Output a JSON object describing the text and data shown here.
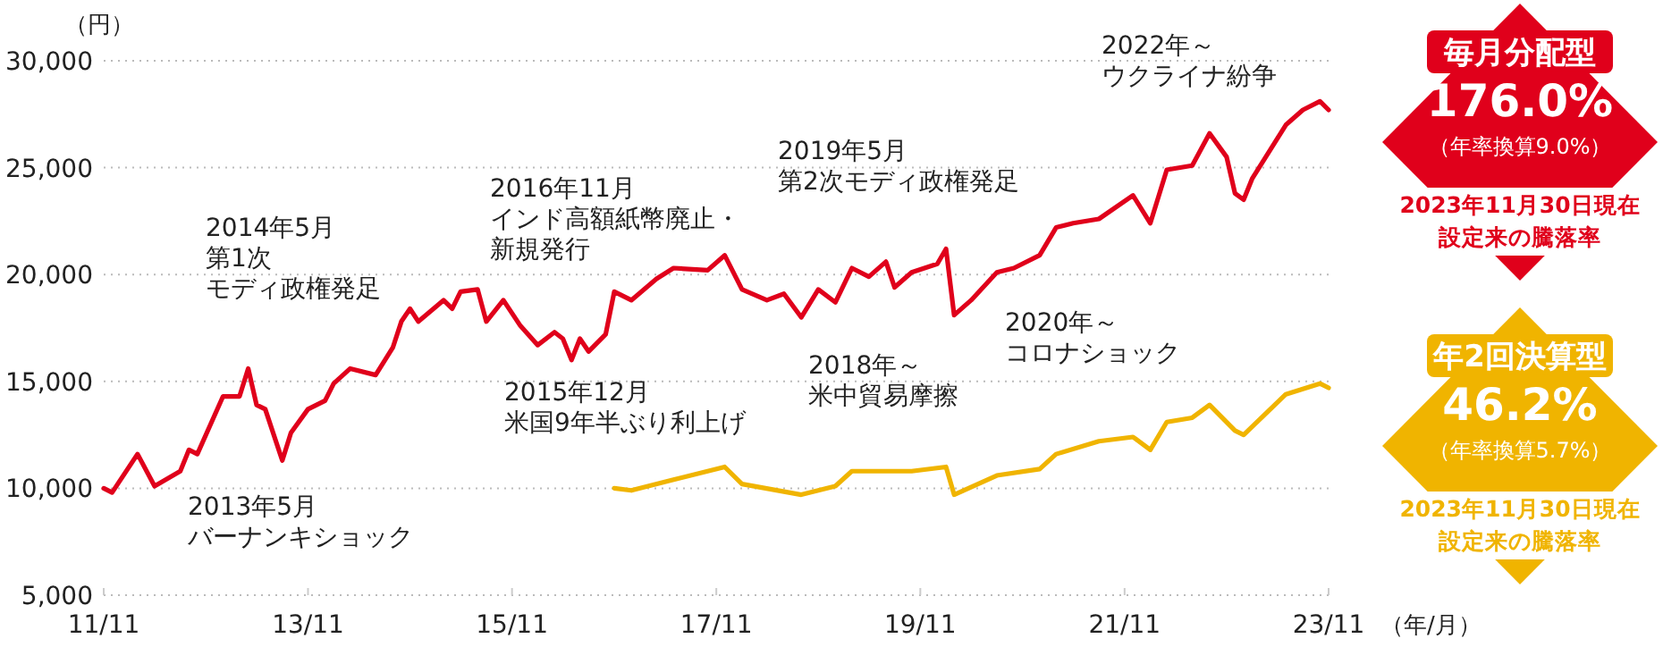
{
  "chart_data": {
    "type": "line",
    "ylabel": "（円）",
    "xlabel": "（年/月）",
    "xlim": [
      "2011-11",
      "2023-11"
    ],
    "xticks": [
      {
        "value": "2011-11",
        "label": "11/11"
      },
      {
        "value": "2013-11",
        "label": "13/11"
      },
      {
        "value": "2015-11",
        "label": "15/11"
      },
      {
        "value": "2017-11",
        "label": "17/11"
      },
      {
        "value": "2019-11",
        "label": "19/11"
      },
      {
        "value": "2021-11",
        "label": "21/11"
      },
      {
        "value": "2023-11",
        "label": "23/11"
      }
    ],
    "ylim": [
      5000,
      30000
    ],
    "yticks": [
      {
        "value": 5000,
        "label": "5,000"
      },
      {
        "value": 10000,
        "label": "10,000"
      },
      {
        "value": 15000,
        "label": "15,000"
      },
      {
        "value": 20000,
        "label": "20,000"
      },
      {
        "value": 25000,
        "label": "25,000"
      },
      {
        "value": 30000,
        "label": "30,000"
      }
    ],
    "grid": "y",
    "legend": "right",
    "marker": "none",
    "line_style": "solid",
    "series": [
      {
        "name": "毎月分配型",
        "color": "#e0001b",
        "x": [
          "2011-11",
          "2011-12",
          "2012-03",
          "2012-05",
          "2012-08",
          "2012-09",
          "2012-10",
          "2013-01",
          "2013-03",
          "2013-04",
          "2013-05",
          "2013-06",
          "2013-08",
          "2013-09",
          "2013-11",
          "2014-01",
          "2014-02",
          "2014-04",
          "2014-07",
          "2014-09",
          "2014-10",
          "2014-11",
          "2014-12",
          "2015-03",
          "2015-04",
          "2015-05",
          "2015-07",
          "2015-08",
          "2015-10",
          "2015-12",
          "2016-02",
          "2016-04",
          "2016-05",
          "2016-06",
          "2016-07",
          "2016-08",
          "2016-10",
          "2016-11",
          "2017-01",
          "2017-04",
          "2017-06",
          "2017-10",
          "2017-12",
          "2018-02",
          "2018-05",
          "2018-07",
          "2018-09",
          "2018-11",
          "2019-01",
          "2019-03",
          "2019-05",
          "2019-07",
          "2019-08",
          "2019-10",
          "2020-01",
          "2020-02",
          "2020-03",
          "2020-05",
          "2020-08",
          "2020-10",
          "2021-01",
          "2021-03",
          "2021-05",
          "2021-08",
          "2021-12",
          "2022-02",
          "2022-04",
          "2022-07",
          "2022-09",
          "2022-11",
          "2022-12",
          "2023-01",
          "2023-02",
          "2023-06",
          "2023-08",
          "2023-10",
          "2023-11"
        ],
        "values": [
          10000,
          9800,
          11600,
          10100,
          10800,
          11800,
          11600,
          14300,
          14300,
          15600,
          13900,
          13700,
          11300,
          12600,
          13700,
          14100,
          14900,
          15600,
          15300,
          16600,
          17800,
          18400,
          17800,
          18800,
          18400,
          19200,
          19300,
          17800,
          18800,
          17600,
          16700,
          17300,
          17000,
          16000,
          17000,
          16400,
          17200,
          19200,
          18800,
          19800,
          20300,
          20200,
          20900,
          19300,
          18800,
          19100,
          18000,
          19300,
          18700,
          20300,
          19900,
          20600,
          19400,
          20100,
          20500,
          21200,
          18100,
          18800,
          20100,
          20300,
          20900,
          22200,
          22400,
          22600,
          23700,
          22400,
          24900,
          25100,
          26600,
          25500,
          23800,
          23500,
          24500,
          27000,
          27700,
          28100,
          27700
        ]
      },
      {
        "name": "年2回決算型",
        "color": "#f0b400",
        "x": [
          "2016-11",
          "2017-01",
          "2017-06",
          "2017-12",
          "2018-02",
          "2018-09",
          "2019-01",
          "2019-03",
          "2019-07",
          "2019-10",
          "2020-02",
          "2020-03",
          "2020-08",
          "2021-01",
          "2021-03",
          "2021-08",
          "2021-12",
          "2022-02",
          "2022-04",
          "2022-07",
          "2022-09",
          "2022-12",
          "2023-01",
          "2023-06",
          "2023-10",
          "2023-11"
        ],
        "values": [
          10000,
          9900,
          10400,
          11000,
          10200,
          9700,
          10100,
          10800,
          10800,
          10800,
          11000,
          9700,
          10600,
          10900,
          11600,
          12200,
          12400,
          11800,
          13100,
          13300,
          13900,
          12700,
          12500,
          14400,
          14900,
          14700
        ]
      }
    ],
    "annotations": [
      "2014年5月",
      "第1次",
      "モディ政権発足",
      "2013年5月",
      "バーナンキショック",
      "2016年11月",
      "インド高額紙幣廃止・",
      "新規発行",
      "2015年12月",
      "米国9年半ぶり利上げ",
      "2019年5月",
      "第2次モディ政権発足",
      "2018年～",
      "米中貿易摩擦",
      "2020年～",
      "コロナショック",
      "2022年～",
      "ウクライナ紛争",
      "176.0%",
      "（年率換算9.0%）",
      "2023年11月30日現在",
      "設定来の騰落率",
      "46.2%",
      "（年率換算5.7%）",
      "2023年11月30日現在",
      "設定来の騰落率"
    ]
  }
}
